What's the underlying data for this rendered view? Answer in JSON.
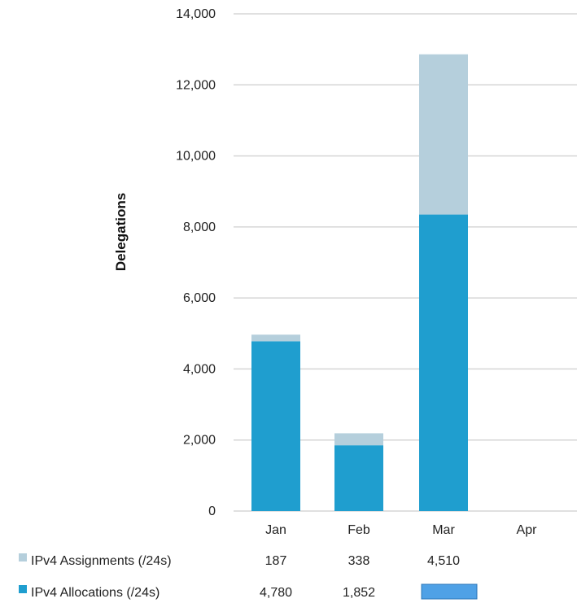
{
  "chart_data": {
    "type": "bar",
    "stacked": true,
    "ylabel": "Delegations",
    "ylim": [
      0,
      14000
    ],
    "yticks": [
      0,
      2000,
      4000,
      6000,
      8000,
      10000,
      12000,
      14000
    ],
    "ytick_labels": [
      "0",
      "2,000",
      "4,000",
      "6,000",
      "8,000",
      "10,000",
      "12,000",
      "14,000"
    ],
    "grid": true,
    "categories": [
      "Jan",
      "Feb",
      "Mar",
      "Apr"
    ],
    "series": [
      {
        "name": "IPv4 Allocations (/24s)",
        "color": "#1f9ecf",
        "values": [
          4780,
          1852,
          8350,
          null
        ],
        "labels": [
          "4,780",
          "1,852",
          "",
          ""
        ],
        "label_redacted": [
          false,
          false,
          true,
          false
        ]
      },
      {
        "name": "IPv4 Assignments (/24s)",
        "color": "#b5cfdc",
        "values": [
          187,
          338,
          4510,
          null
        ],
        "labels": [
          "187",
          "338",
          "4,510",
          ""
        ]
      }
    ],
    "legend_placement": "bottom-left data table"
  }
}
